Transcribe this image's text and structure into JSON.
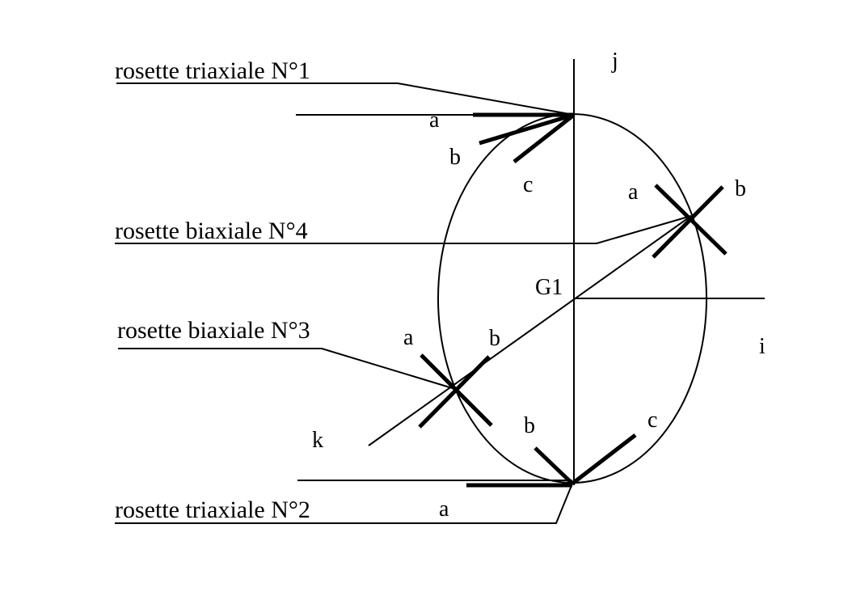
{
  "labels": {
    "rosette_n1": "rosette triaxiale N°1",
    "rosette_n4": "rosette biaxiale N°4",
    "rosette_n3": "rosette biaxiale N°3",
    "rosette_n2": "rosette triaxiale N°2"
  },
  "axes": {
    "j": "j",
    "i": "i",
    "k": "k",
    "center": "G1"
  },
  "gauges": {
    "n1": {
      "a": "a",
      "b": "b",
      "c": "c"
    },
    "n4": {
      "a": "a",
      "b": "b"
    },
    "n3": {
      "a": "a",
      "b": "b"
    },
    "n2": {
      "a": "a",
      "b": "b",
      "c": "c"
    }
  }
}
